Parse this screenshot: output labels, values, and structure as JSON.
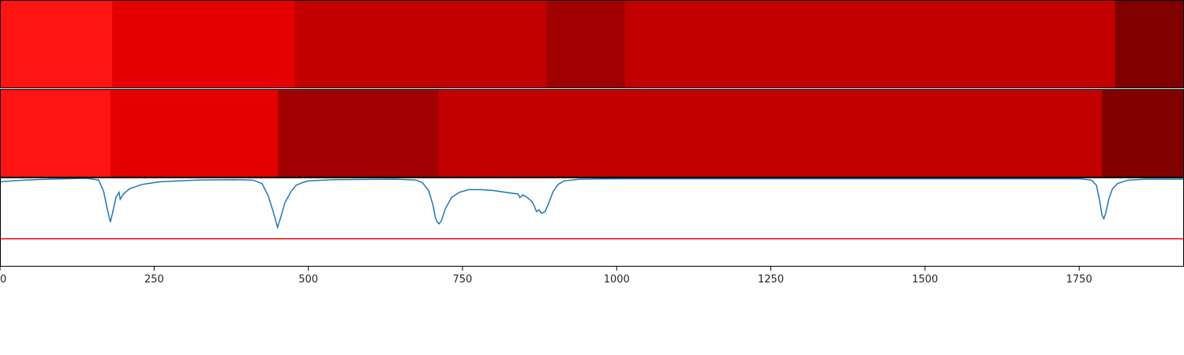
{
  "chart_data": [
    {
      "type": "heatmap",
      "xlim": [
        0,
        1920
      ],
      "segments": [
        {
          "start": 0,
          "end": 182,
          "color": "#ff1414"
        },
        {
          "start": 182,
          "end": 478,
          "color": "#e40000"
        },
        {
          "start": 478,
          "end": 886,
          "color": "#c30000"
        },
        {
          "start": 886,
          "end": 1013,
          "color": "#a00000"
        },
        {
          "start": 1013,
          "end": 1808,
          "color": "#c30000"
        },
        {
          "start": 1808,
          "end": 1920,
          "color": "#800000"
        }
      ]
    },
    {
      "type": "heatmap",
      "xlim": [
        0,
        1920
      ],
      "segments": [
        {
          "start": 0,
          "end": 179,
          "color": "#ff1414"
        },
        {
          "start": 179,
          "end": 451,
          "color": "#e40000"
        },
        {
          "start": 451,
          "end": 711,
          "color": "#a00000"
        },
        {
          "start": 711,
          "end": 1787,
          "color": "#c30000"
        },
        {
          "start": 1787,
          "end": 1920,
          "color": "#800000"
        }
      ]
    },
    {
      "type": "line",
      "xlim": [
        0,
        1920
      ],
      "ylim": [
        0,
        1
      ],
      "xticks": [
        0,
        250,
        500,
        750,
        1000,
        1250,
        1500,
        1750
      ],
      "threshold": {
        "value": 0.31,
        "color": "#e8000b"
      },
      "series": [
        {
          "color": "#1f77b4",
          "points": [
            [
              0,
              0.96
            ],
            [
              20,
              0.97
            ],
            [
              40,
              0.98
            ],
            [
              80,
              0.99
            ],
            [
              140,
              1.0
            ],
            [
              160,
              0.98
            ],
            [
              168,
              0.85
            ],
            [
              174,
              0.65
            ],
            [
              179,
              0.5
            ],
            [
              183,
              0.62
            ],
            [
              188,
              0.78
            ],
            [
              193,
              0.84
            ],
            [
              195,
              0.76
            ],
            [
              200,
              0.82
            ],
            [
              210,
              0.88
            ],
            [
              230,
              0.93
            ],
            [
              260,
              0.96
            ],
            [
              290,
              0.97
            ],
            [
              320,
              0.98
            ],
            [
              380,
              0.985
            ],
            [
              410,
              0.98
            ],
            [
              425,
              0.94
            ],
            [
              435,
              0.8
            ],
            [
              443,
              0.62
            ],
            [
              450,
              0.44
            ],
            [
              455,
              0.55
            ],
            [
              462,
              0.72
            ],
            [
              472,
              0.85
            ],
            [
              480,
              0.92
            ],
            [
              490,
              0.95
            ],
            [
              500,
              0.97
            ],
            [
              540,
              0.985
            ],
            [
              640,
              0.99
            ],
            [
              675,
              0.98
            ],
            [
              685,
              0.95
            ],
            [
              695,
              0.86
            ],
            [
              702,
              0.7
            ],
            [
              706,
              0.55
            ],
            [
              709,
              0.5
            ],
            [
              712,
              0.48
            ],
            [
              716,
              0.52
            ],
            [
              722,
              0.65
            ],
            [
              732,
              0.78
            ],
            [
              745,
              0.84
            ],
            [
              760,
              0.87
            ],
            [
              780,
              0.87
            ],
            [
              800,
              0.86
            ],
            [
              820,
              0.84
            ],
            [
              840,
              0.82
            ],
            [
              843,
              0.78
            ],
            [
              848,
              0.81
            ],
            [
              855,
              0.78
            ],
            [
              862,
              0.74
            ],
            [
              866,
              0.69
            ],
            [
              870,
              0.62
            ],
            [
              874,
              0.64
            ],
            [
              878,
              0.6
            ],
            [
              884,
              0.62
            ],
            [
              890,
              0.72
            ],
            [
              897,
              0.85
            ],
            [
              905,
              0.93
            ],
            [
              915,
              0.97
            ],
            [
              940,
              0.99
            ],
            [
              1000,
              0.995
            ],
            [
              1750,
              0.995
            ],
            [
              1770,
              0.98
            ],
            [
              1778,
              0.92
            ],
            [
              1783,
              0.75
            ],
            [
              1787,
              0.58
            ],
            [
              1790,
              0.54
            ],
            [
              1793,
              0.6
            ],
            [
              1798,
              0.76
            ],
            [
              1804,
              0.88
            ],
            [
              1812,
              0.94
            ],
            [
              1830,
              0.98
            ],
            [
              1860,
              0.99
            ],
            [
              1920,
              0.99
            ]
          ]
        }
      ]
    }
  ]
}
